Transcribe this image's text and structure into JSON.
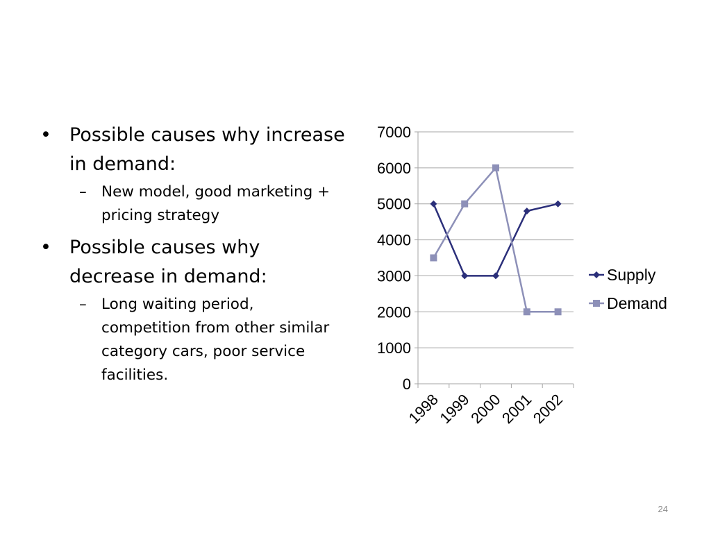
{
  "slide": {
    "bullets": [
      {
        "marker": "•",
        "text": "Possible causes why increase in demand:",
        "sub": [
          {
            "marker": "–",
            "text": "New model, good marketing + pricing strategy"
          }
        ]
      },
      {
        "marker": "•",
        "text": "Possible causes why decrease in demand:",
        "sub": [
          {
            "marker": "–",
            "text": "Long waiting period, competition from other similar category cars, poor service facilities."
          }
        ]
      }
    ],
    "slide_number": "24"
  },
  "chart_data": {
    "type": "line",
    "categories": [
      "1998",
      "1999",
      "2000",
      "2001",
      "2002"
    ],
    "series": [
      {
        "name": "Supply",
        "values": [
          5000,
          3000,
          3000,
          4800,
          5000
        ],
        "color": "#2b2f7a",
        "marker": "diamond"
      },
      {
        "name": "Demand",
        "values": [
          3500,
          5000,
          6000,
          2000,
          2000
        ],
        "color": "#8d90b8",
        "marker": "square"
      }
    ],
    "ylim": [
      0,
      7000
    ],
    "yticks": [
      "0",
      "1000",
      "2000",
      "3000",
      "4000",
      "5000",
      "6000",
      "7000"
    ],
    "grid": true,
    "legend": "right",
    "title": "",
    "xlabel": "",
    "ylabel": ""
  }
}
